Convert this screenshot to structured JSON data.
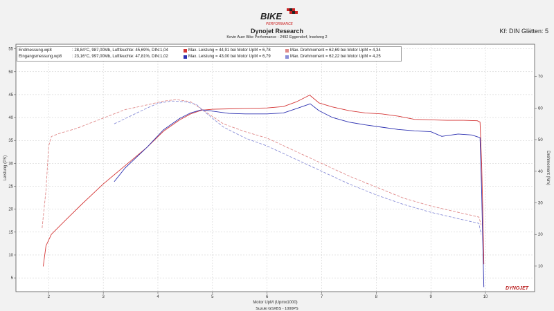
{
  "header": {
    "logo_top": "BIKE",
    "logo_bottom": "PERFORMANCE",
    "title": "Dynojet Research",
    "subtitle": "Kevin Auer Bike Performance - 2492 Eggendorf, Inselweg 2",
    "smoothing": "Kf: DIN Glätten: 5"
  },
  "legend": {
    "rows": [
      {
        "file": "Endmessung.wp8",
        "conditions": ": 28,84°C, 987,00Mb, Luftfeuchte: 45,69%, DIN:1,04",
        "power_text": "Max. Leistung = 44,91 bei Motor UpM = 6,78",
        "torque_text": "Max. Drehmoment = 62,69 bei Motor UpM = 4,34",
        "power_color": "#d43535",
        "torque_color": "#e08a8a"
      },
      {
        "file": "Eingangsmessung.wp8",
        "conditions": ": 23,16°C, 997,00Mb, Luftfeuchte: 47,81%, DIN:1,02",
        "power_text": "Max. Leistung = 43,00 bei Motor UpM = 6,79",
        "torque_text": "Max. Drehmoment = 62,22 bei Motor UpM = 4,25",
        "power_color": "#2b2fb0",
        "torque_color": "#8a8fd8"
      }
    ]
  },
  "footer": {
    "caption": "Suzuki GSXBS - 1000PS",
    "brand": "DYNOJET"
  },
  "chart_data": {
    "type": "line",
    "xlabel": "Motor UpM (Upmx1000)",
    "ylabel_left": "Leistung (PS)",
    "ylabel_right": "Drehmoment (Nm)",
    "xlim": [
      1.4,
      10.9
    ],
    "ylim_left": [
      2,
      56
    ],
    "ylim_right": [
      1.9,
      80.2
    ],
    "xticks": [
      2,
      3,
      4,
      5,
      6,
      7,
      8,
      9,
      10
    ],
    "yticks_left": [
      5,
      10,
      15,
      20,
      25,
      30,
      35,
      40,
      45,
      50,
      55
    ],
    "yticks_right": [
      10,
      20,
      30,
      40,
      50,
      60,
      70
    ],
    "grid": true,
    "series": [
      {
        "name": "Endmessung.wp8 Leistung",
        "axis": "left",
        "style": "solid",
        "color": "#d43535",
        "x": [
          1.9,
          1.95,
          2.05,
          2.3,
          2.6,
          3.0,
          3.4,
          3.8,
          4.1,
          4.4,
          4.6,
          4.8,
          5.0,
          5.3,
          5.6,
          6.0,
          6.3,
          6.55,
          6.78,
          6.95,
          7.2,
          7.5,
          7.8,
          8.1,
          8.4,
          8.7,
          9.0,
          9.3,
          9.6,
          9.85,
          9.9,
          9.93,
          9.95,
          9.97
        ],
        "y": [
          7.5,
          12,
          14.5,
          17.5,
          21,
          25.5,
          29.5,
          33.5,
          37,
          39.5,
          40.8,
          41.6,
          41.8,
          41.9,
          42.0,
          42.1,
          42.4,
          43.5,
          44.9,
          43.2,
          42.3,
          41.5,
          41.0,
          40.8,
          40.3,
          39.6,
          39.5,
          39.4,
          39.4,
          39.3,
          39.0,
          30,
          20,
          8
        ]
      },
      {
        "name": "Eingangsmessung.wp8 Leistung",
        "axis": "left",
        "style": "solid",
        "color": "#2b2fb0",
        "x": [
          3.2,
          3.4,
          3.8,
          4.1,
          4.4,
          4.6,
          4.8,
          5.0,
          5.3,
          5.6,
          6.0,
          6.3,
          6.55,
          6.79,
          6.95,
          7.2,
          7.5,
          7.8,
          8.1,
          8.4,
          8.7,
          9.0,
          9.2,
          9.5,
          9.75,
          9.9,
          9.93,
          9.95,
          9.97
        ],
        "y": [
          26,
          29,
          33.5,
          37.3,
          39.8,
          41.0,
          41.7,
          41.4,
          40.9,
          40.8,
          40.8,
          41.0,
          42.0,
          43.0,
          41.5,
          40.0,
          39.0,
          38.4,
          37.9,
          37.4,
          37.1,
          36.9,
          35.9,
          36.4,
          36.2,
          35.6,
          24,
          13,
          3
        ]
      },
      {
        "name": "Endmessung.wp8 Drehmoment",
        "axis": "right",
        "style": "dashed",
        "color": "#e08a8a",
        "x": [
          1.88,
          1.95,
          2.0,
          2.05,
          2.2,
          2.5,
          2.8,
          3.1,
          3.4,
          3.8,
          4.1,
          4.34,
          4.6,
          4.9,
          5.2,
          5.6,
          6.0,
          6.5,
          7.0,
          7.5,
          8.0,
          8.5,
          9.0,
          9.5,
          9.88,
          9.92
        ],
        "y": [
          22,
          34,
          48,
          51,
          52,
          53.5,
          55.5,
          57.5,
          59.5,
          61,
          62.2,
          62.69,
          62.0,
          58.5,
          55,
          52.5,
          50.5,
          46.5,
          42.5,
          38.5,
          35,
          31.5,
          29,
          27,
          25.5,
          23
        ]
      },
      {
        "name": "Eingangsmessung.wp8 Drehmoment",
        "axis": "right",
        "style": "dashed",
        "color": "#8a8fd8",
        "x": [
          3.2,
          3.5,
          3.8,
          4.0,
          4.25,
          4.5,
          4.7,
          4.9,
          5.2,
          5.6,
          6.0,
          6.5,
          7.0,
          7.5,
          8.0,
          8.5,
          9.0,
          9.5,
          9.88,
          9.92
        ],
        "y": [
          55,
          57.5,
          60,
          61.5,
          62.22,
          62.0,
          61.2,
          58.2,
          54,
          50.5,
          48,
          44,
          40,
          36,
          32.5,
          29.5,
          27,
          25,
          23.5,
          20
        ]
      }
    ]
  }
}
